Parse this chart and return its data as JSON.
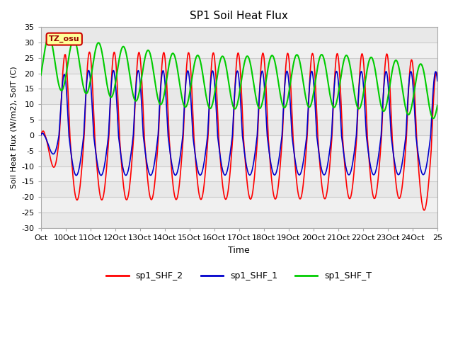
{
  "title": "SP1 Soil Heat Flux",
  "xlabel": "Time",
  "ylabel": "Soil Heat Flux (W/m2), SolT (C)",
  "xlim": [
    0,
    16
  ],
  "ylim": [
    -30,
    35
  ],
  "yticks": [
    -30,
    -25,
    -20,
    -15,
    -10,
    -5,
    0,
    5,
    10,
    15,
    20,
    25,
    30,
    35
  ],
  "xtick_positions": [
    0,
    1,
    2,
    3,
    4,
    5,
    6,
    7,
    8,
    9,
    10,
    11,
    12,
    13,
    14,
    15,
    16
  ],
  "xtick_labels": [
    "Oct",
    "10Oct",
    "11Oct",
    "12Oct",
    "13Oct",
    "14Oct",
    "15Oct",
    "16Oct",
    "17Oct",
    "18Oct",
    "19Oct",
    "20Oct",
    "21Oct",
    "22Oct",
    "23Oct",
    "24Oct",
    "25"
  ],
  "line_colors": {
    "sp1_SHF_2": "#ff0000",
    "sp1_SHF_1": "#0000cc",
    "sp1_SHF_T": "#00cc00"
  },
  "annotation_text": "TZ_osu",
  "annotation_bg": "#ffff99",
  "annotation_border": "#cc0000",
  "grid_color": "#cccccc",
  "band_colors": [
    "#e8e8e8",
    "#f0f0f0"
  ]
}
